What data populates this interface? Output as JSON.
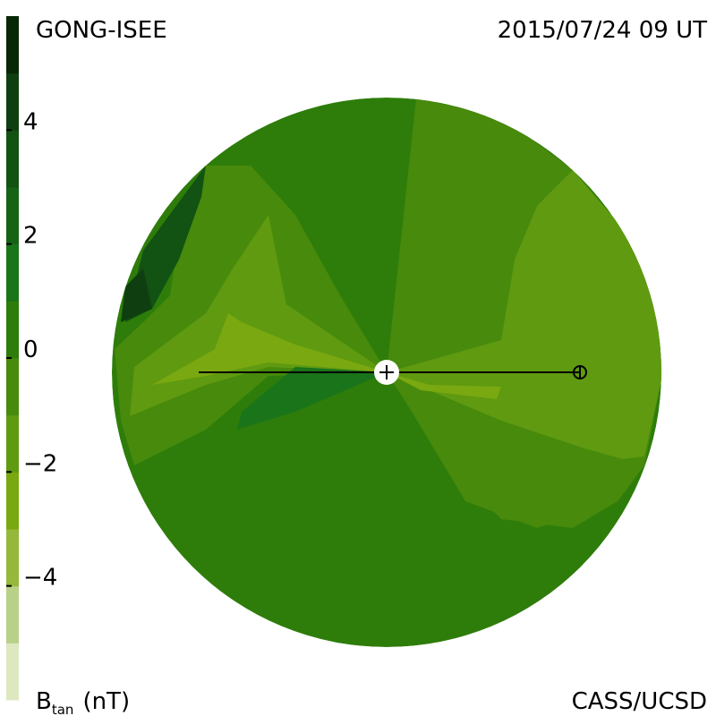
{
  "header": {
    "source": "GONG-ISEE",
    "date": "2015/07/24 09 UT"
  },
  "colorbar": {
    "lim": [
      -6,
      6
    ],
    "levels": [
      -6,
      -5,
      -4,
      -3,
      -2,
      -1,
      0,
      1,
      2,
      3,
      4,
      5,
      6
    ],
    "colors": [
      "#dde8c0",
      "#b8d088",
      "#95b83a",
      "#7aa810",
      "#5f9a10",
      "#478a0c",
      "#2e7d0a",
      "#1a741a",
      "#166316",
      "#125212",
      "#0f3f10",
      "#062806"
    ],
    "ticks": [
      4,
      2,
      0,
      {
        "value": -2,
        "label": "−2"
      },
      {
        "value": -4,
        "label": "−4"
      }
    ],
    "label": {
      "symbol": "B",
      "subscript": "tan",
      "unit": "(nT)"
    }
  },
  "footer": {
    "credit": "CASS/UCSD"
  }
}
